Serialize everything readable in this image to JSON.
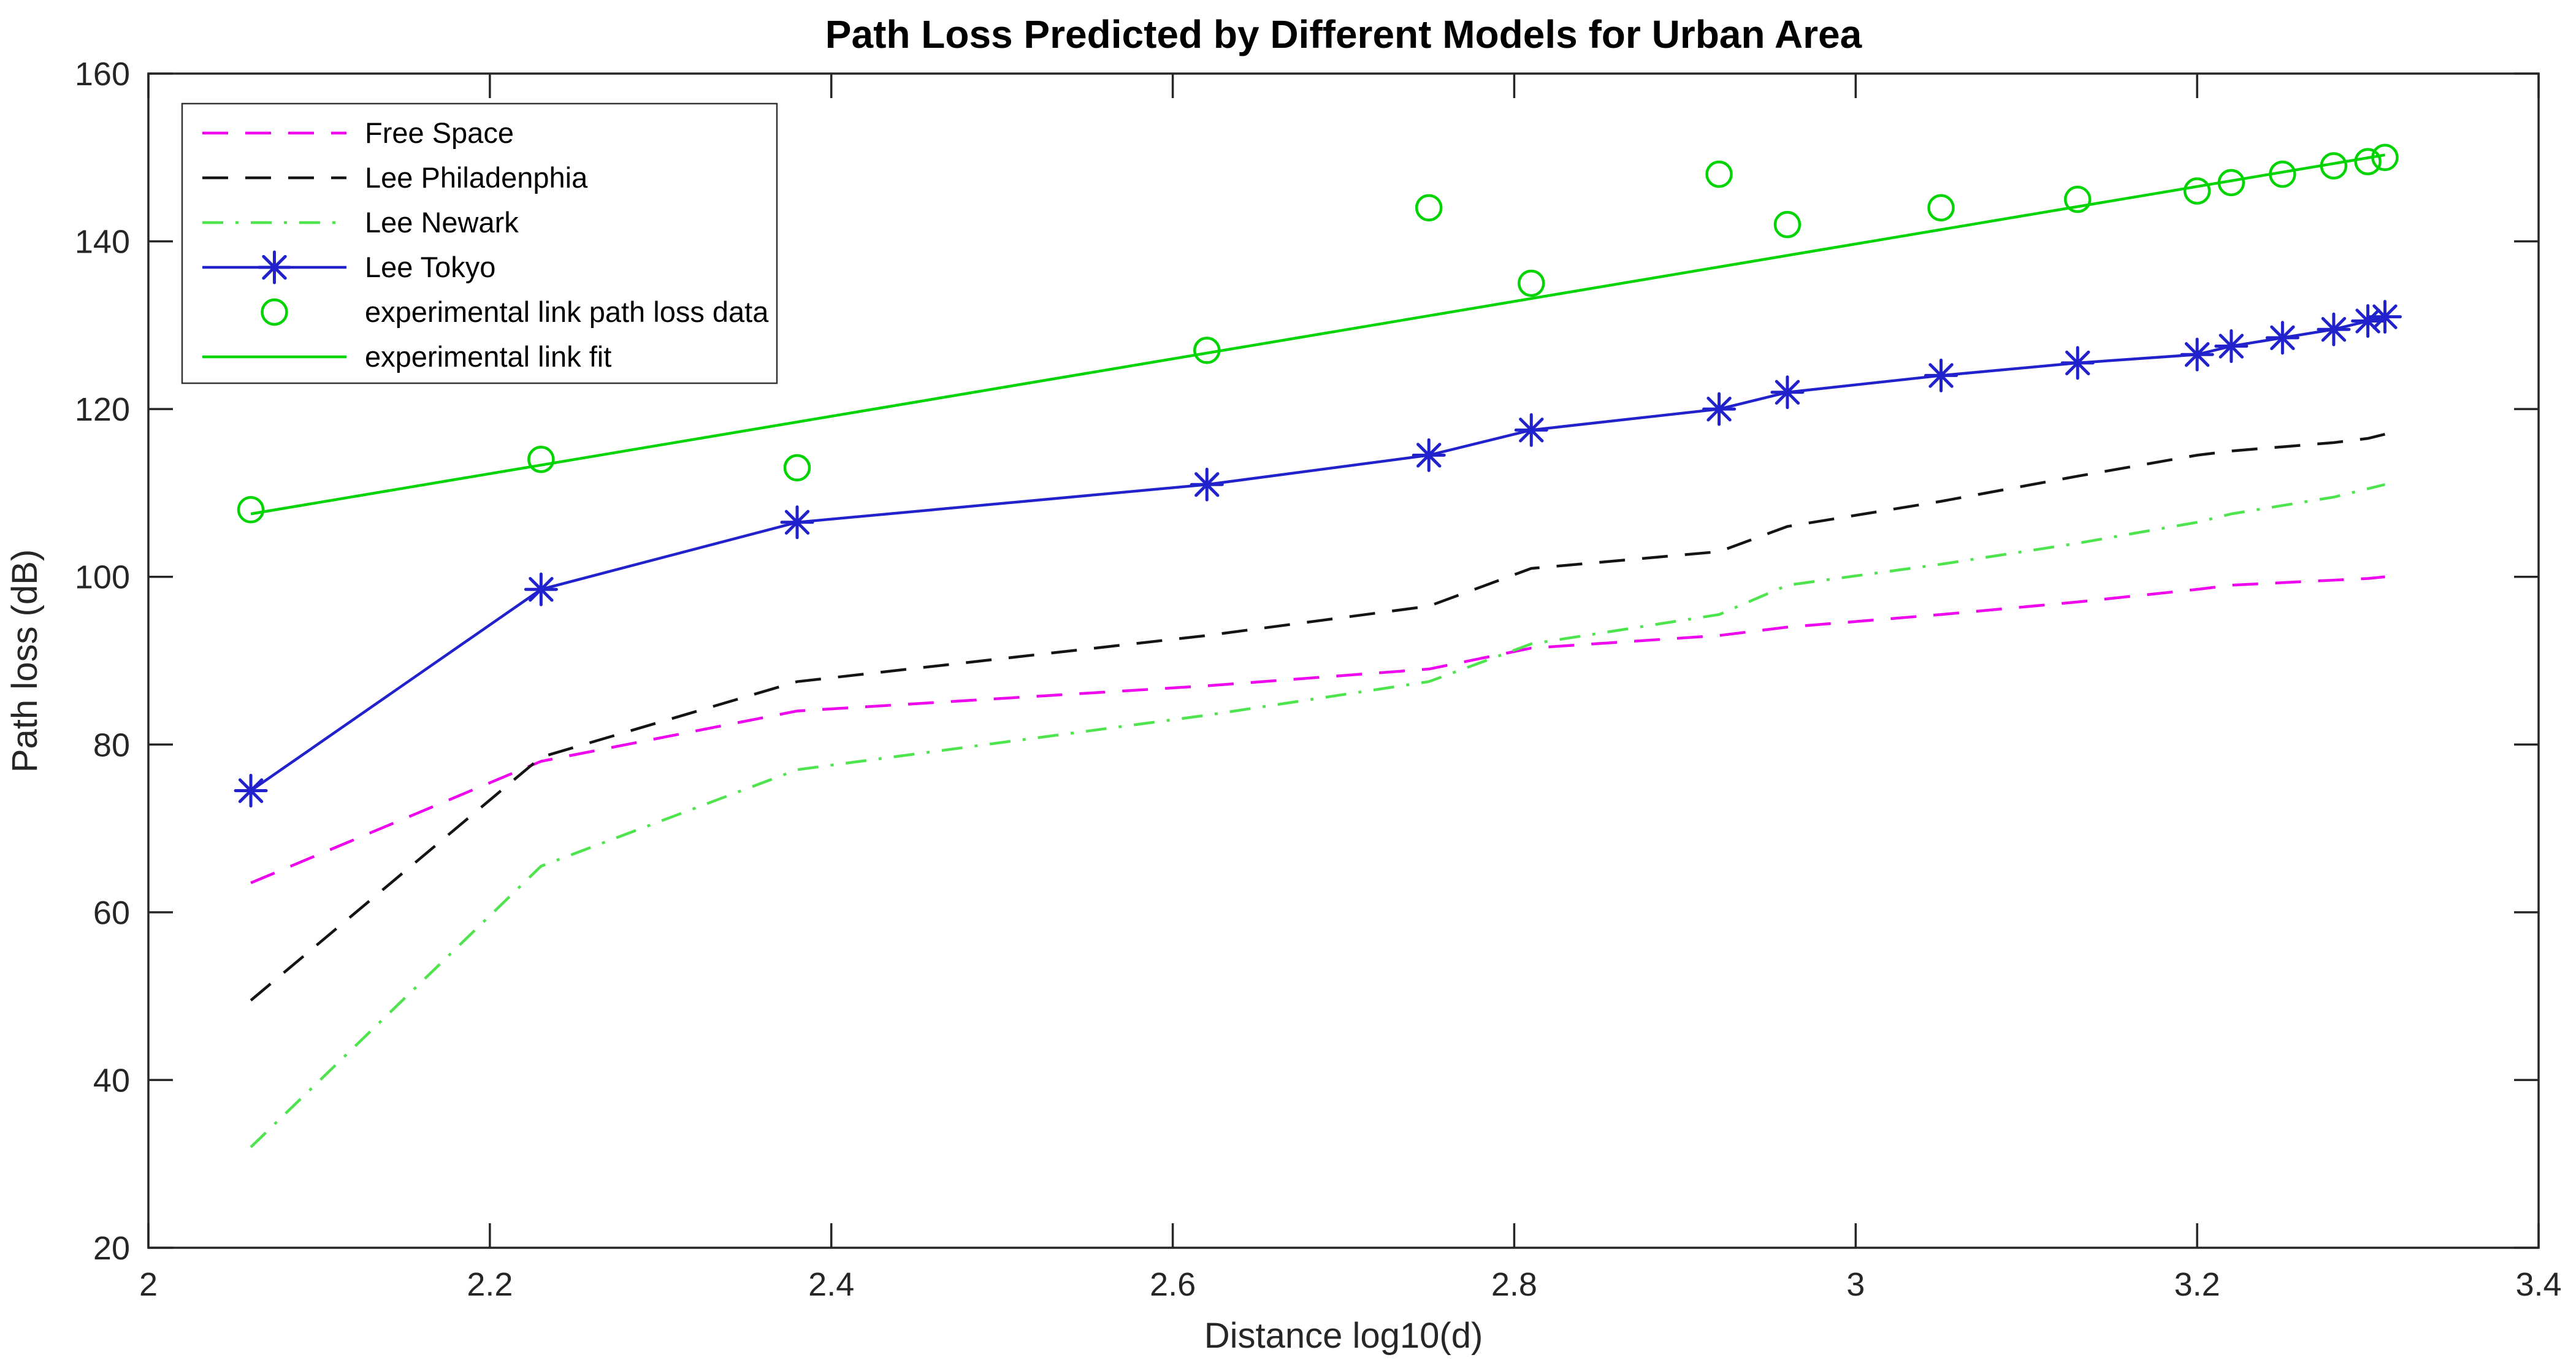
{
  "chart_data": {
    "type": "line",
    "title": "Path Loss Predicted by Different Models for Urban Area",
    "xlabel": "Distance log10(d)",
    "ylabel": "Path loss (dB)",
    "xlim": [
      2,
      3.4
    ],
    "ylim": [
      20,
      160
    ],
    "xticks": [
      2,
      2.2,
      2.4,
      2.6,
      2.8,
      3,
      3.2,
      3.4
    ],
    "xtick_labels": [
      "2",
      "2.2",
      "2.4",
      "2.6",
      "2.8",
      "3",
      "3.2",
      "3.4"
    ],
    "yticks": [
      20,
      40,
      60,
      80,
      100,
      120,
      140,
      160
    ],
    "ytick_labels": [
      "20",
      "40",
      "60",
      "80",
      "100",
      "120",
      "140",
      "160"
    ],
    "grid": false,
    "legend_position": "top-left",
    "axis_color": "#262626",
    "x": [
      2.06,
      2.23,
      2.38,
      2.62,
      2.75,
      2.81,
      2.92,
      2.96,
      3.05,
      3.13,
      3.2,
      3.22,
      3.25,
      3.28,
      3.3,
      3.31
    ],
    "series": [
      {
        "name": "Free Space",
        "color": "#EE00EE",
        "line": "dash",
        "marker": "none",
        "values": [
          63.5,
          78,
          84,
          87,
          89,
          91.5,
          93,
          94,
          95.5,
          97,
          98.5,
          99,
          99.3,
          99.6,
          99.8,
          100
        ]
      },
      {
        "name": "Lee Philadenphia",
        "color": "#141414",
        "line": "dash",
        "marker": "none",
        "values": [
          49.5,
          78.5,
          87.5,
          93,
          96.5,
          101,
          103,
          106,
          109,
          112,
          114.5,
          115,
          115.5,
          116,
          116.5,
          117
        ]
      },
      {
        "name": "Lee Newark",
        "color": "#4EE44E",
        "line": "dashdot",
        "marker": "none",
        "values": [
          32,
          65.5,
          77,
          83.5,
          87.5,
          92,
          95.5,
          99,
          101.5,
          104,
          106.5,
          107.5,
          108.5,
          109.5,
          110.5,
          111
        ]
      },
      {
        "name": "Lee Tokyo",
        "color": "#2222CC",
        "line": "solid",
        "marker": "asterisk",
        "values": [
          74.5,
          98.5,
          106.5,
          111,
          114.5,
          117.5,
          120,
          122,
          124,
          125.5,
          126.5,
          127.5,
          128.5,
          129.5,
          130.5,
          131
        ]
      },
      {
        "name": "experimental link path loss data",
        "color": "#00D400",
        "line": "none",
        "marker": "circle",
        "values": [
          108,
          114,
          113,
          127,
          144,
          135,
          148,
          142,
          144,
          145,
          146,
          147,
          148,
          149,
          149.5,
          150
        ]
      },
      {
        "name": "experimental link fit",
        "color": "#00D400",
        "line": "solid",
        "marker": "none",
        "x": [
          2.06,
          3.31
        ],
        "values": [
          107.5,
          150.3
        ]
      }
    ]
  }
}
